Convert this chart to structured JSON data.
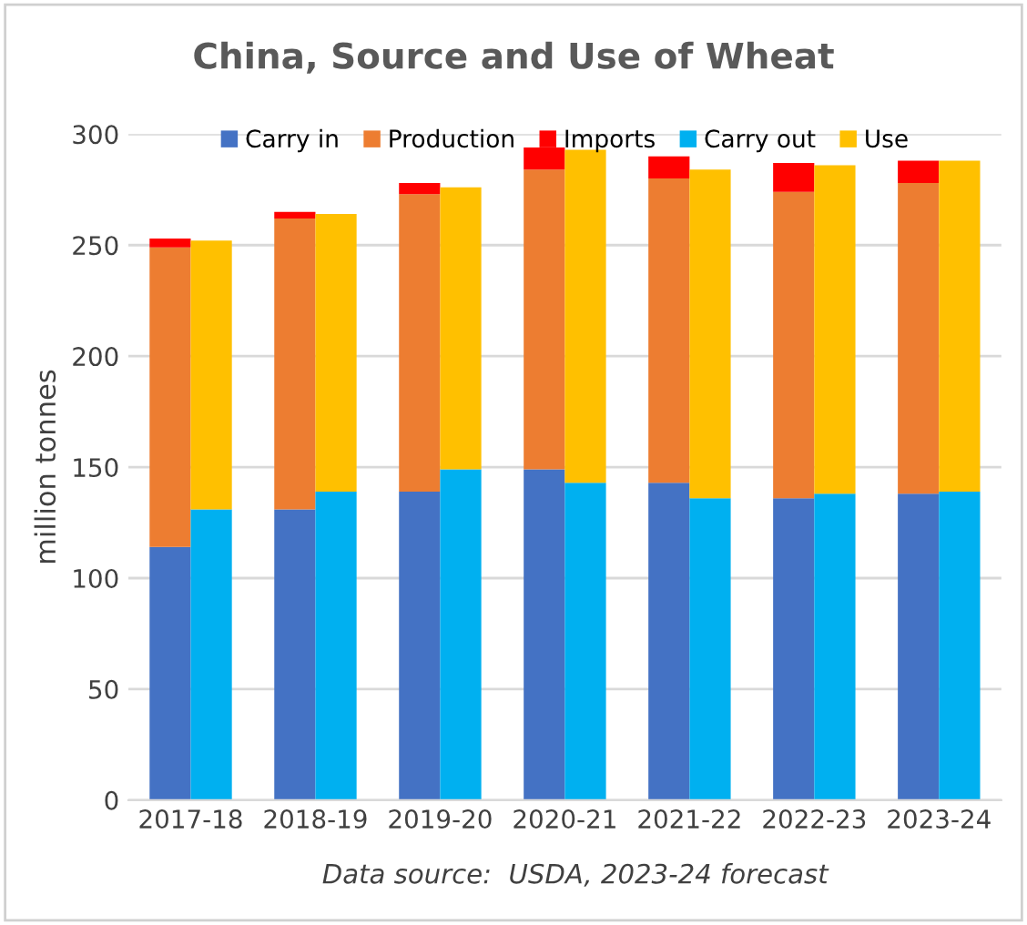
{
  "chart_data": {
    "type": "bar",
    "title": "China, Source and Use of Wheat",
    "ylabel": "million tonnes",
    "categories": [
      "2017-18",
      "2018-19",
      "2019-20",
      "2020-21",
      "2021-22",
      "2022-23",
      "2023-24"
    ],
    "series": [
      {
        "name": "Carry in",
        "color": "#4472c4",
        "base": [
          0,
          0,
          0,
          0,
          0,
          0,
          0
        ],
        "values": [
          114,
          131,
          139,
          149,
          143,
          136,
          138
        ]
      },
      {
        "name": "Production",
        "color": "#ed7d31",
        "base": [
          114,
          131,
          139,
          149,
          143,
          136,
          138
        ],
        "values": [
          135,
          131,
          134,
          135,
          137,
          138,
          140
        ]
      },
      {
        "name": "Imports",
        "color": "#ff0000",
        "base": [
          249,
          262,
          273,
          284,
          280,
          274,
          278
        ],
        "values": [
          4,
          3,
          5,
          10,
          10,
          13,
          10
        ]
      },
      {
        "name": "Carry out",
        "color": "#00b0f0",
        "base": [
          0,
          0,
          0,
          0,
          0,
          0,
          0
        ],
        "values": [
          131,
          139,
          149,
          143,
          136,
          138,
          139
        ]
      },
      {
        "name": "Use",
        "color": "#ffc000",
        "base": [
          131,
          139,
          149,
          143,
          136,
          138,
          139
        ],
        "values": [
          121,
          125,
          127,
          150,
          148,
          148,
          149
        ]
      }
    ],
    "ylim": [
      0,
      300
    ],
    "yticks": [
      0,
      50,
      100,
      150,
      200,
      250,
      300
    ],
    "grid": "y",
    "legend": "top",
    "annotations": [
      "Data source:  USDA, 2023-24 forecast"
    ]
  }
}
